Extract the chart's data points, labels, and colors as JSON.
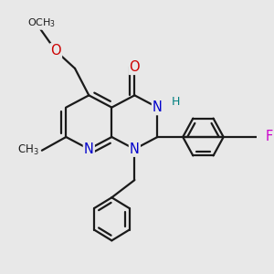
{
  "bg_color": "#e8e8e8",
  "bond_color": "#1a1a1a",
  "bond_width": 1.6,
  "dbo": 0.018,
  "atom_colors": {
    "N": "#0000cc",
    "O": "#cc0000",
    "F": "#cc00cc",
    "NH": "#008080",
    "C": "#1a1a1a"
  },
  "fs": 9.5
}
